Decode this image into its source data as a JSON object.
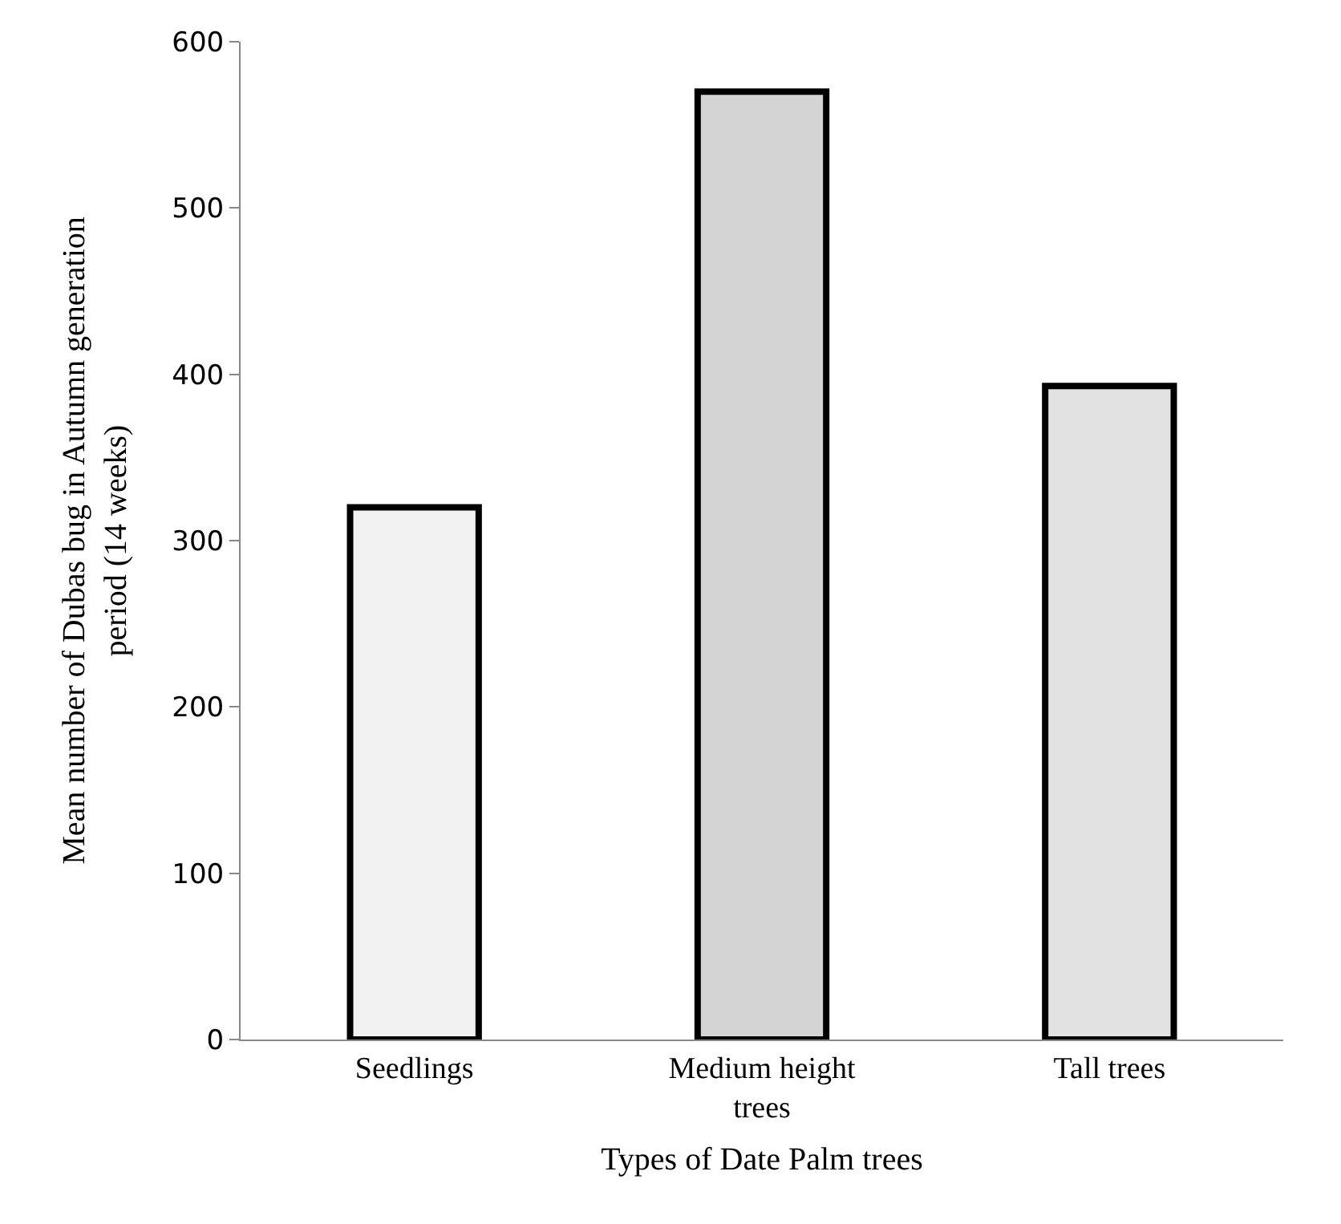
{
  "chart_data": {
    "type": "bar",
    "xlabel": "Types of Date Palm trees",
    "ylabel": "Mean number of Dubas bug in Autumn generation period (14 weeks)",
    "categories": [
      "Seedlings",
      "Medium height trees",
      "Tall trees"
    ],
    "values": [
      320,
      570,
      393
    ],
    "colors": [
      "#f2f2f2",
      "#d4d4d4",
      "#e2e2e2"
    ],
    "ylim": [
      0,
      600
    ],
    "yticks": [
      0,
      100,
      200,
      300,
      400,
      500,
      600
    ],
    "grid": false
  }
}
